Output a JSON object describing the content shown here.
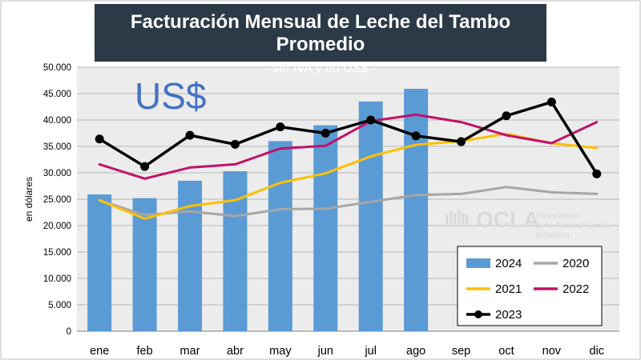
{
  "header": {
    "title": "Facturación Mensual de Leche del Tambo Promedio",
    "subtitle": "- sin IVA y en US$ -"
  },
  "watermark": {
    "logo_text": "OCLA",
    "line1": "Observatorio",
    "line2": "de la Cadena Láctea",
    "line3": "Argentina"
  },
  "chart_data": {
    "type": "bar",
    "annotation": "US$",
    "ylabel": "en dólares",
    "ylim": [
      0,
      50000
    ],
    "y_ticks": [
      "0",
      "5.000",
      "10.000",
      "15.000",
      "20.000",
      "25.000",
      "30.000",
      "35.000",
      "40.000",
      "45.000",
      "50.000"
    ],
    "categories": [
      "ene",
      "feb",
      "mar",
      "abr",
      "may",
      "jun",
      "jul",
      "ago",
      "sep",
      "oct",
      "nov",
      "dic"
    ],
    "grid": "horizontal",
    "legend_position": "bottom-right",
    "series": [
      {
        "name": "2024",
        "type": "bar",
        "color": "#5b9bd5",
        "values": [
          25900,
          25200,
          28500,
          30300,
          36000,
          39000,
          43500,
          45900,
          null,
          null,
          null,
          null
        ]
      },
      {
        "name": "2020",
        "type": "line",
        "color": "#a6a6a6",
        "values": [
          24800,
          22000,
          22700,
          21800,
          23100,
          23200,
          24500,
          25800,
          26000,
          27300,
          26300,
          26000
        ]
      },
      {
        "name": "2021",
        "type": "line",
        "color": "#ffc000",
        "values": [
          24800,
          21300,
          23700,
          24800,
          28100,
          29900,
          33100,
          35300,
          36000,
          37400,
          35600,
          34700
        ]
      },
      {
        "name": "2022",
        "type": "line",
        "color": "#c0126a",
        "values": [
          31600,
          28900,
          31000,
          31600,
          34600,
          35100,
          39800,
          41000,
          39600,
          37100,
          35600,
          39600
        ]
      },
      {
        "name": "2023",
        "type": "line-markers",
        "color": "#000000",
        "values": [
          36400,
          31200,
          37100,
          35400,
          38700,
          37500,
          40000,
          37000,
          35900,
          40800,
          43400,
          29800
        ]
      }
    ]
  }
}
